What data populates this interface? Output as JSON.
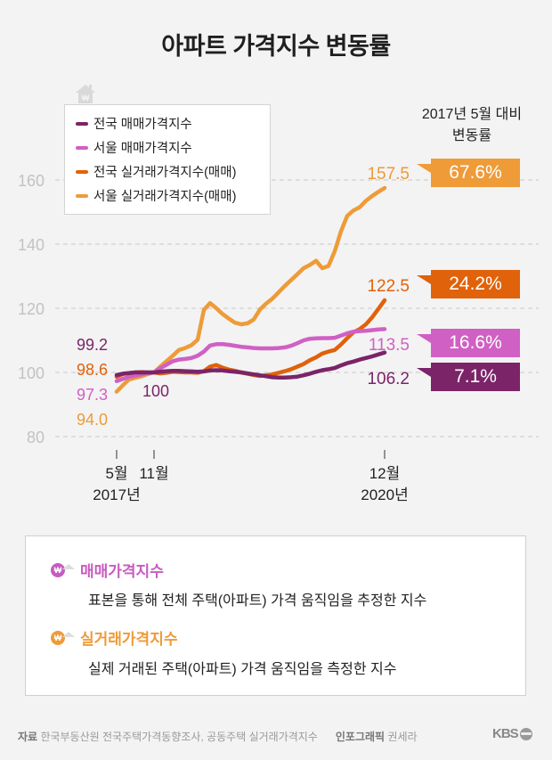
{
  "title": "아파트 가격지수 변동률",
  "right_header": {
    "line1": "2017년 5월 대비",
    "line2": "변동률"
  },
  "colors": {
    "national_sale": "#7b2468",
    "seoul_sale": "#d060c4",
    "national_real": "#e0620a",
    "seoul_real": "#ee9b38",
    "grid": "#c8c8c8",
    "axis_text": "#c2c2c2"
  },
  "badges": [
    {
      "key": "seoul_real",
      "label": "67.6%",
      "end_label": "157.5"
    },
    {
      "key": "national_real",
      "label": "24.2%",
      "end_label": "122.5"
    },
    {
      "key": "seoul_sale",
      "label": "16.6%",
      "end_label": "113.5"
    },
    {
      "key": "national_sale",
      "label": "7.1%",
      "end_label": "106.2"
    }
  ],
  "start_labels": [
    {
      "key": "national_sale",
      "label": "99.2"
    },
    {
      "key": "national_real",
      "label": "98.6"
    },
    {
      "key": "seoul_sale",
      "label": "97.3"
    },
    {
      "key": "seoul_real",
      "label": "94.0"
    }
  ],
  "base_label": "100",
  "info": {
    "items": [
      {
        "icon": "won-coin-house-icon",
        "title": "매매가격지수",
        "desc": "표본을 통해 전체 주택(아파트) 가격 움직임을 추정한 지수",
        "color": "#c85bc0"
      },
      {
        "icon": "won-coin-house-icon",
        "title": "실거래가격지수",
        "desc": "실제 거래된 주택(아파트) 가격 움직임을 측정한 지수",
        "color": "#ee9b38"
      }
    ]
  },
  "footer": {
    "source_label": "자료",
    "source": "한국부동산원 전국주택가격동향조사, 공동주택 실거래가격지수",
    "credit_label": "인포그래픽",
    "credit": "권세라",
    "logo": "KBS"
  },
  "chart_data": {
    "type": "line",
    "title": "아파트 가격지수 변동률",
    "xlabel": "",
    "ylabel": "",
    "ylim": [
      80,
      165
    ],
    "yticks": [
      80,
      100,
      120,
      140,
      160
    ],
    "grid": true,
    "legend_position": "top-left",
    "x_ticks": [
      {
        "month_index": 0,
        "label": "5월",
        "sublabel": "2017년"
      },
      {
        "month_index": 6,
        "label": "11월",
        "sublabel": ""
      },
      {
        "month_index": 43,
        "label": "12월",
        "sublabel": "2020년"
      }
    ],
    "x_start": "2017-05",
    "x_end": "2020-12",
    "series": [
      {
        "key": "national_sale",
        "name": "전국 매매가격지수",
        "values": [
          99.2,
          99.6,
          99.8,
          100.0,
          100.0,
          100.0,
          100.0,
          100.2,
          100.4,
          100.5,
          100.5,
          100.4,
          100.3,
          100.2,
          100.3,
          100.6,
          100.7,
          100.6,
          100.4,
          100.2,
          100.0,
          99.7,
          99.4,
          99.1,
          98.8,
          98.5,
          98.4,
          98.4,
          98.5,
          98.7,
          99.1,
          99.6,
          100.2,
          100.7,
          101.0,
          101.4,
          102.2,
          102.9,
          103.4,
          104.0,
          104.5,
          105.0,
          105.6,
          106.2
        ]
      },
      {
        "key": "seoul_sale",
        "name": "서울 매매가격지수",
        "values": [
          97.3,
          98.0,
          98.6,
          99.0,
          99.4,
          99.8,
          100.0,
          101.3,
          102.4,
          103.5,
          104.0,
          104.2,
          104.5,
          105.2,
          106.5,
          108.4,
          108.8,
          108.8,
          108.6,
          108.3,
          108.0,
          107.8,
          107.6,
          107.5,
          107.5,
          107.5,
          107.6,
          107.8,
          108.3,
          109.1,
          110.0,
          110.5,
          110.6,
          110.7,
          110.7,
          110.8,
          111.5,
          112.2,
          112.7,
          112.9,
          113.0,
          113.2,
          113.4,
          113.5
        ]
      },
      {
        "key": "national_real",
        "name": "전국 실거래가격지수(매매)",
        "values": [
          98.6,
          99.5,
          99.8,
          100.0,
          100.1,
          100.0,
          100.0,
          99.7,
          99.9,
          100.2,
          100.1,
          100.0,
          100.0,
          99.9,
          100.4,
          101.8,
          102.3,
          101.5,
          100.9,
          100.5,
          100.0,
          99.6,
          99.2,
          98.9,
          99.1,
          99.4,
          99.9,
          100.4,
          101.0,
          101.8,
          102.6,
          103.8,
          104.7,
          105.9,
          106.5,
          107.0,
          108.7,
          110.7,
          112.5,
          113.5,
          115.0,
          117.2,
          119.8,
          122.5
        ]
      },
      {
        "key": "seoul_real",
        "name": "서울 실거래가격지수(매매)",
        "values": [
          94.0,
          96.0,
          97.8,
          98.3,
          98.8,
          99.5,
          100.0,
          101.8,
          103.5,
          105.2,
          107.0,
          107.6,
          108.5,
          110.2,
          119.5,
          121.6,
          120.0,
          118.2,
          116.8,
          115.5,
          115.0,
          115.3,
          116.5,
          119.6,
          121.5,
          123.0,
          125.0,
          127.0,
          128.8,
          130.6,
          132.5,
          133.5,
          134.8,
          132.5,
          133.2,
          137.8,
          144.0,
          148.8,
          150.5,
          151.5,
          153.5,
          155.0,
          156.3,
          157.5
        ]
      }
    ]
  }
}
